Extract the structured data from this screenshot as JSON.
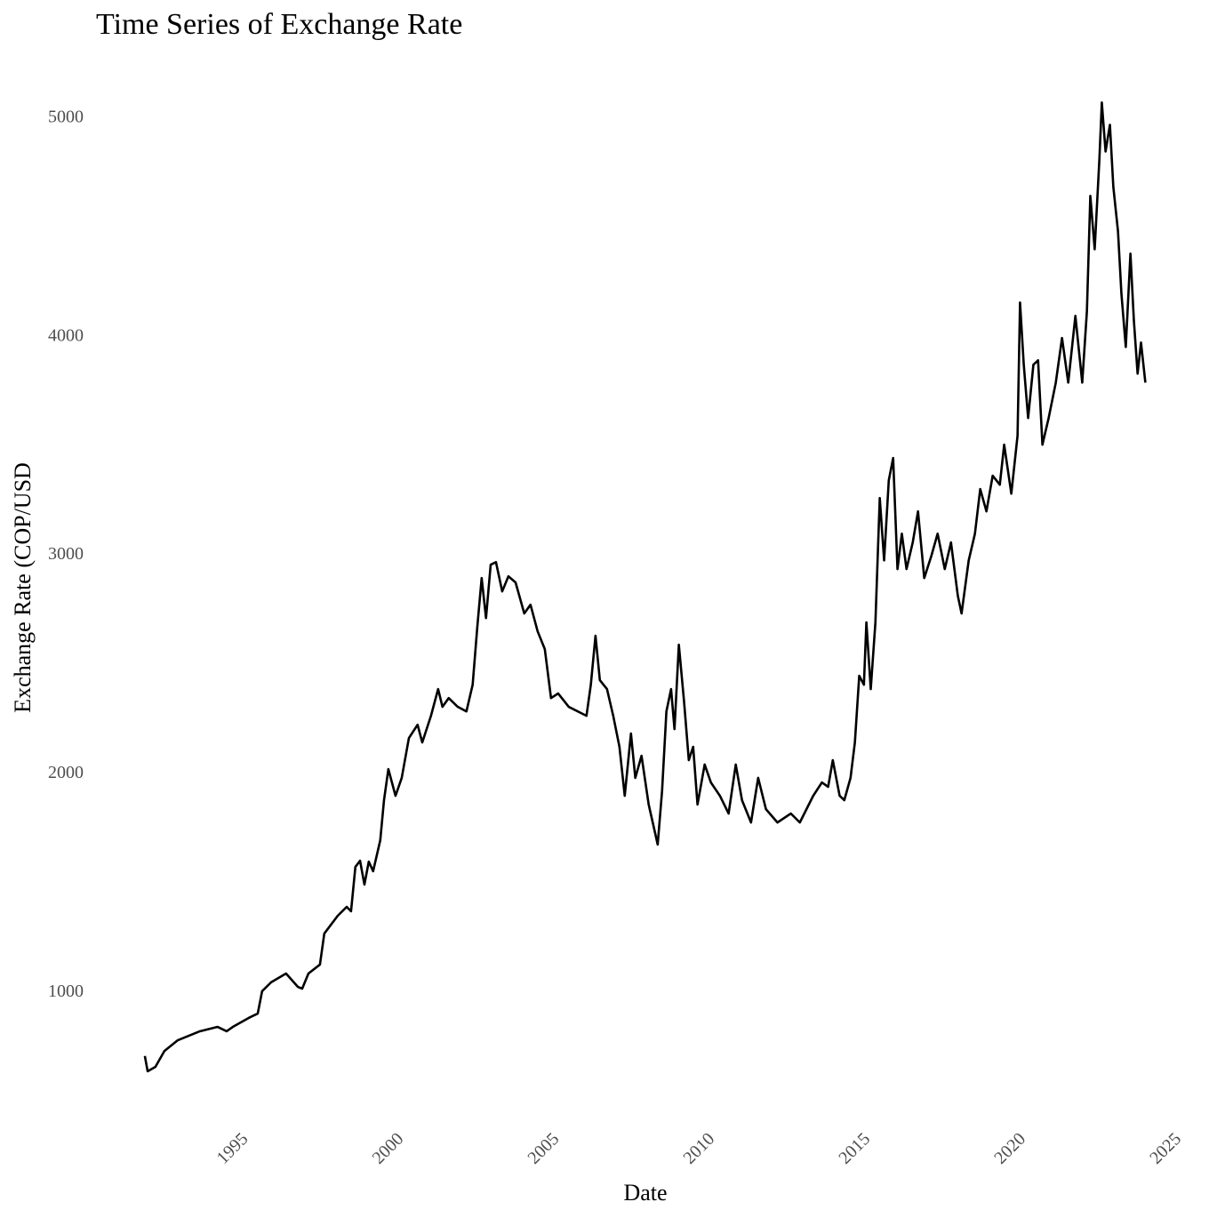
{
  "chart_data": {
    "type": "line",
    "title": "Time Series of Exchange Rate",
    "x_label": "Date",
    "y_label": "Exchange Rate (COP/USD",
    "xlim": [
      1990.6,
      2025.9
    ],
    "xticks": [
      1995,
      2000,
      2005,
      2010,
      2015,
      2020,
      2025
    ],
    "ylim": [
      398,
      5282
    ],
    "yticks": [
      1000,
      2000,
      3000,
      4000,
      5000
    ],
    "grid": false,
    "x": [
      1992.17,
      1992.26,
      1992.51,
      1992.8,
      1993.23,
      1993.94,
      1994.51,
      1994.8,
      1995.0,
      1995.51,
      1995.8,
      1995.94,
      1996.23,
      1996.71,
      1997.09,
      1997.23,
      1997.43,
      1997.8,
      1997.94,
      1998.37,
      1998.66,
      1998.8,
      1998.94,
      1999.09,
      1999.23,
      1999.37,
      1999.51,
      1999.74,
      1999.86,
      2000.0,
      2000.23,
      2000.43,
      2000.66,
      2000.94,
      2001.09,
      2001.37,
      2001.6,
      2001.74,
      2001.94,
      2002.23,
      2002.51,
      2002.71,
      2002.86,
      2003.0,
      2003.14,
      2003.29,
      2003.46,
      2003.66,
      2003.86,
      2004.09,
      2004.37,
      2004.57,
      2004.8,
      2005.03,
      2005.23,
      2005.46,
      2005.8,
      2006.37,
      2006.51,
      2006.66,
      2006.8,
      2007.03,
      2007.23,
      2007.43,
      2007.6,
      2007.8,
      2007.94,
      2008.14,
      2008.37,
      2008.66,
      2008.8,
      2008.94,
      2009.09,
      2009.2,
      2009.34,
      2009.51,
      2009.66,
      2009.8,
      2009.94,
      2010.17,
      2010.37,
      2010.66,
      2010.94,
      2011.17,
      2011.37,
      2011.66,
      2011.89,
      2012.14,
      2012.51,
      2012.94,
      2013.23,
      2013.66,
      2013.94,
      2014.14,
      2014.29,
      2014.51,
      2014.66,
      2014.86,
      2015.0,
      2015.14,
      2015.29,
      2015.37,
      2015.51,
      2015.66,
      2015.8,
      2015.94,
      2016.09,
      2016.23,
      2016.37,
      2016.51,
      2016.66,
      2016.86,
      2017.03,
      2017.23,
      2017.46,
      2017.66,
      2017.89,
      2018.09,
      2018.31,
      2018.43,
      2018.66,
      2018.86,
      2019.03,
      2019.23,
      2019.43,
      2019.66,
      2019.8,
      2020.03,
      2020.23,
      2020.31,
      2020.43,
      2020.57,
      2020.74,
      2020.89,
      2021.03,
      2021.23,
      2021.46,
      2021.66,
      2021.86,
      2022.09,
      2022.31,
      2022.46,
      2022.57,
      2022.71,
      2022.86,
      2022.94,
      2023.06,
      2023.2,
      2023.31,
      2023.46,
      2023.57,
      2023.71,
      2023.86,
      2023.97,
      2024.09,
      2024.2,
      2024.34
    ],
    "series": [
      {
        "name": "Exchange Rate",
        "color": "#000000",
        "values": [
          700,
          630,
          650,
          723,
          772,
          813,
          833,
          813,
          833,
          874,
          894,
          996,
          1037,
          1077,
          1016,
          1008,
          1077,
          1118,
          1260,
          1341,
          1382,
          1362,
          1565,
          1593,
          1484,
          1589,
          1545,
          1687,
          1870,
          2012,
          1890,
          1972,
          2154,
          2215,
          2134,
          2256,
          2378,
          2297,
          2337,
          2297,
          2276,
          2398,
          2663,
          2886,
          2703,
          2947,
          2959,
          2825,
          2894,
          2866,
          2724,
          2764,
          2642,
          2561,
          2337,
          2358,
          2297,
          2256,
          2398,
          2622,
          2419,
          2378,
          2256,
          2114,
          1890,
          2175,
          1972,
          2073,
          1850,
          1667,
          1911,
          2276,
          2378,
          2195,
          2581,
          2317,
          2053,
          2114,
          1850,
          2033,
          1951,
          1890,
          1809,
          2033,
          1870,
          1768,
          1972,
          1829,
          1768,
          1809,
          1768,
          1890,
          1951,
          1931,
          2053,
          1890,
          1870,
          1972,
          2134,
          2439,
          2398,
          2683,
          2378,
          2683,
          3252,
          2967,
          3333,
          3435,
          2927,
          3089,
          2927,
          3049,
          3191,
          2886,
          2988,
          3089,
          2927,
          3049,
          2805,
          2724,
          2967,
          3089,
          3293,
          3191,
          3354,
          3313,
          3496,
          3272,
          3537,
          4146,
          3862,
          3618,
          3862,
          3882,
          3496,
          3618,
          3780,
          3984,
          3780,
          4085,
          3780,
          4106,
          4634,
          4390,
          4797,
          5061,
          4837,
          4959,
          4675,
          4472,
          4187,
          3943,
          4370,
          4065,
          3821,
          3963,
          3780
        ]
      }
    ]
  }
}
